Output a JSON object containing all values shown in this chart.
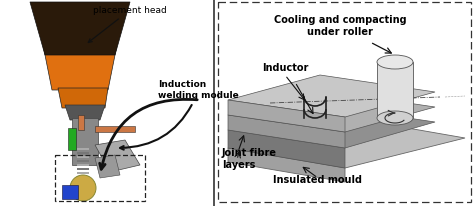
{
  "fig_width": 4.74,
  "fig_height": 2.06,
  "dpi": 100,
  "bg_color": "#ffffff",
  "left_panel": {
    "label_placement_head": "placement head",
    "label_induction": "Induction\nwelding module"
  },
  "right_panel": {
    "label_cooling": "Cooling and compacting\nunder roller",
    "label_inductor": "Inductor",
    "label_joint": "Joint fibre\nlayers",
    "label_insulated": "Insulated mould"
  },
  "arrow_color": "#111111"
}
